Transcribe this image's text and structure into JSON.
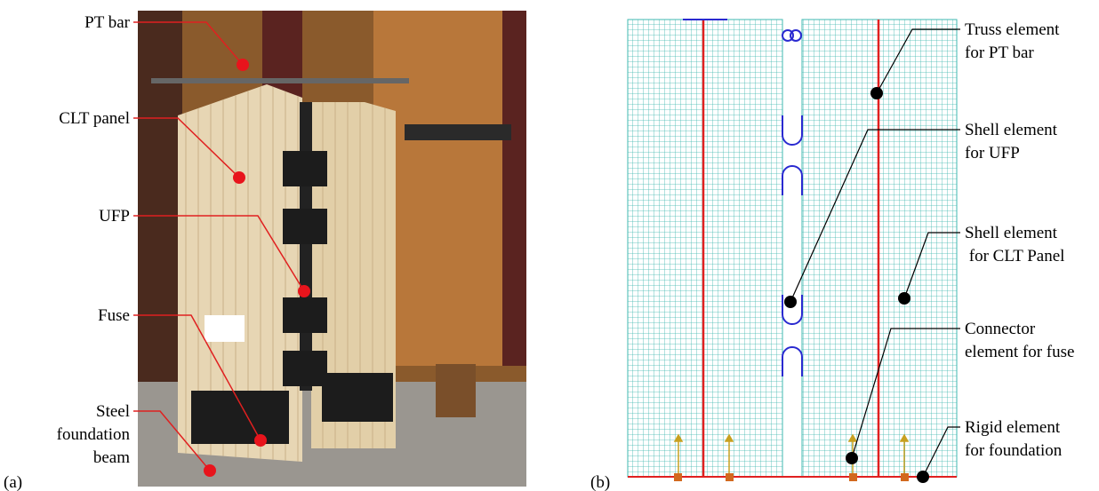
{
  "panel_a": {
    "label": "(a)",
    "callouts": [
      {
        "lines": [
          "PT bar"
        ]
      },
      {
        "lines": [
          "CLT panel"
        ]
      },
      {
        "lines": [
          "UFP"
        ]
      },
      {
        "lines": [
          "Fuse"
        ]
      },
      {
        "lines": [
          "Steel",
          "foundation",
          "beam"
        ]
      }
    ]
  },
  "panel_b": {
    "label": "(b)",
    "callouts": [
      {
        "lines": [
          "Truss element",
          "for PT bar"
        ]
      },
      {
        "lines": [
          "Shell element",
          "for UFP"
        ]
      },
      {
        "lines": [
          "Shell element",
          " for CLT Panel"
        ]
      },
      {
        "lines": [
          "Connector",
          "element for fuse"
        ]
      },
      {
        "lines": [
          "Rigid element",
          "for foundation"
        ]
      }
    ]
  }
}
